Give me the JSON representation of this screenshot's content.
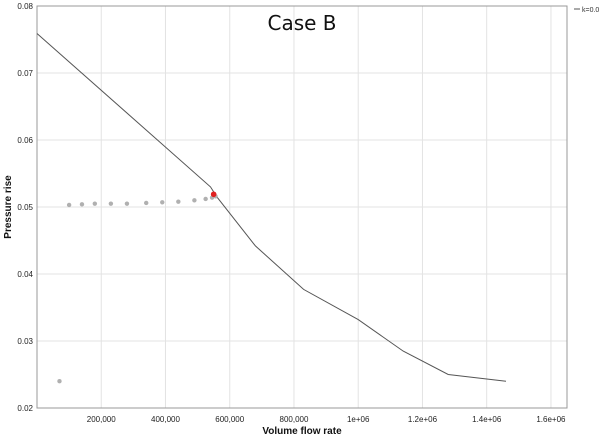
{
  "chart_data": {
    "type": "line",
    "title": "Case B",
    "xlabel": "Volume flow rate",
    "ylabel": "Pressure rise",
    "xlim": [
      0,
      1650000
    ],
    "ylim": [
      0.02,
      0.08
    ],
    "grid": true,
    "legend_position": "top-right",
    "x_ticks": [
      {
        "value": 200000,
        "label": "200,000"
      },
      {
        "value": 400000,
        "label": "400,000"
      },
      {
        "value": 600000,
        "label": "600,000"
      },
      {
        "value": 800000,
        "label": "800,000"
      },
      {
        "value": 1000000,
        "label": "1e+06"
      },
      {
        "value": 1200000,
        "label": "1.2e+06"
      },
      {
        "value": 1400000,
        "label": "1.4e+06"
      },
      {
        "value": 1600000,
        "label": "1.6e+06"
      }
    ],
    "y_ticks": [
      {
        "value": 0.02,
        "label": "0.02"
      },
      {
        "value": 0.03,
        "label": "0.03"
      },
      {
        "value": 0.04,
        "label": "0.04"
      },
      {
        "value": 0.05,
        "label": "0.05"
      },
      {
        "value": 0.06,
        "label": "0.06"
      },
      {
        "value": 0.07,
        "label": "0.07"
      },
      {
        "value": 0.08,
        "label": "0.08"
      }
    ],
    "series": [
      {
        "name": "k=0.0",
        "kind": "line",
        "color": "#555555",
        "points": [
          [
            0,
            0.0759
          ],
          [
            540000,
            0.053
          ],
          [
            560000,
            0.0515
          ],
          [
            680000,
            0.0442
          ],
          [
            830000,
            0.0377
          ],
          [
            1000000,
            0.0332
          ],
          [
            1140000,
            0.0285
          ],
          [
            1280000,
            0.025
          ],
          [
            1460000,
            0.024
          ]
        ]
      },
      {
        "kind": "scatter",
        "color": "#b0b0b0",
        "points": [
          [
            70000,
            0.024
          ],
          [
            100000,
            0.0503
          ],
          [
            140000,
            0.0504
          ],
          [
            180000,
            0.0505
          ],
          [
            230000,
            0.0505
          ],
          [
            280000,
            0.0505
          ],
          [
            340000,
            0.0506
          ],
          [
            390000,
            0.0507
          ],
          [
            440000,
            0.0508
          ],
          [
            490000,
            0.051
          ],
          [
            525000,
            0.0512
          ],
          [
            545000,
            0.0514
          ],
          [
            556000,
            0.0516
          ]
        ]
      },
      {
        "kind": "highlight",
        "color": "#e02020",
        "points": [
          [
            550000,
            0.0519
          ]
        ]
      }
    ]
  }
}
